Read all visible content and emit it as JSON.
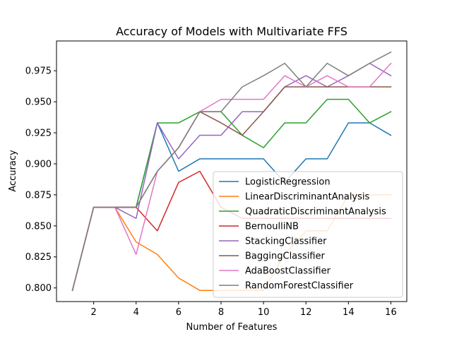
{
  "chart_data": {
    "type": "line",
    "title": "Accuracy of Models with Multivariate FFS",
    "xlabel": "Number of Features",
    "ylabel": "Accuracy",
    "xlim": [
      0.25,
      16.75
    ],
    "ylim": [
      0.789,
      0.999
    ],
    "xticks": [
      2,
      4,
      6,
      8,
      10,
      12,
      14,
      16
    ],
    "yticks": [
      0.8,
      0.825,
      0.85,
      0.875,
      0.9,
      0.925,
      0.95,
      0.975
    ],
    "ytick_labels": [
      "0.800",
      "0.825",
      "0.850",
      "0.875",
      "0.900",
      "0.925",
      "0.950",
      "0.975"
    ],
    "grid": false,
    "legend_position": "lower-right",
    "x": [
      1,
      2,
      3,
      4,
      5,
      6,
      7,
      8,
      9,
      10,
      11,
      12,
      13,
      14,
      15,
      16
    ],
    "series": [
      {
        "name": "LogisticRegression",
        "color": "#1f77b4",
        "values": [
          0.798,
          0.865,
          0.865,
          0.865,
          0.933,
          0.894,
          0.904,
          0.904,
          0.904,
          0.904,
          0.885,
          0.904,
          0.904,
          0.933,
          0.933,
          0.923
        ]
      },
      {
        "name": "LinearDiscriminantAnalysis",
        "color": "#ff7f0e",
        "values": [
          0.798,
          0.865,
          0.865,
          0.837,
          0.827,
          0.808,
          0.798,
          0.798,
          0.798,
          0.798,
          0.827,
          0.846,
          0.846,
          0.875,
          0.875,
          0.875
        ]
      },
      {
        "name": "QuadraticDiscriminantAnalysis",
        "color": "#2ca02c",
        "values": [
          0.798,
          0.865,
          0.865,
          0.865,
          0.933,
          0.933,
          0.942,
          0.942,
          0.923,
          0.913,
          0.933,
          0.933,
          0.952,
          0.952,
          0.933,
          0.942
        ]
      },
      {
        "name": "BernoulliNB",
        "color": "#d62728",
        "values": [
          0.798,
          0.865,
          0.865,
          0.865,
          0.846,
          0.885,
          0.894,
          0.865,
          0.856,
          0.856,
          0.856,
          0.856,
          0.856,
          0.856,
          0.856,
          0.856
        ]
      },
      {
        "name": "StackingClassifier",
        "color": "#9467bd",
        "values": [
          0.798,
          0.865,
          0.865,
          0.856,
          0.933,
          0.904,
          0.923,
          0.923,
          0.942,
          0.942,
          0.962,
          0.971,
          0.962,
          0.971,
          0.981,
          0.971
        ]
      },
      {
        "name": "BaggingClassifier",
        "color": "#8c564b",
        "values": [
          0.798,
          0.865,
          0.865,
          0.865,
          0.894,
          0.913,
          0.942,
          0.933,
          0.923,
          0.942,
          0.962,
          0.962,
          0.962,
          0.962,
          0.962,
          0.962
        ]
      },
      {
        "name": "AdaBoostClassifier",
        "color": "#e377c2",
        "values": [
          0.798,
          0.865,
          0.865,
          0.827,
          0.894,
          0.913,
          0.942,
          0.952,
          0.952,
          0.952,
          0.971,
          0.962,
          0.971,
          0.962,
          0.962,
          0.981
        ]
      },
      {
        "name": "RandomForestClassifier",
        "color": "#7f7f7f",
        "values": [
          0.798,
          0.865,
          0.865,
          0.865,
          0.894,
          0.913,
          0.942,
          0.942,
          0.962,
          0.971,
          0.981,
          0.962,
          0.981,
          0.971,
          0.981,
          0.99
        ]
      }
    ]
  }
}
